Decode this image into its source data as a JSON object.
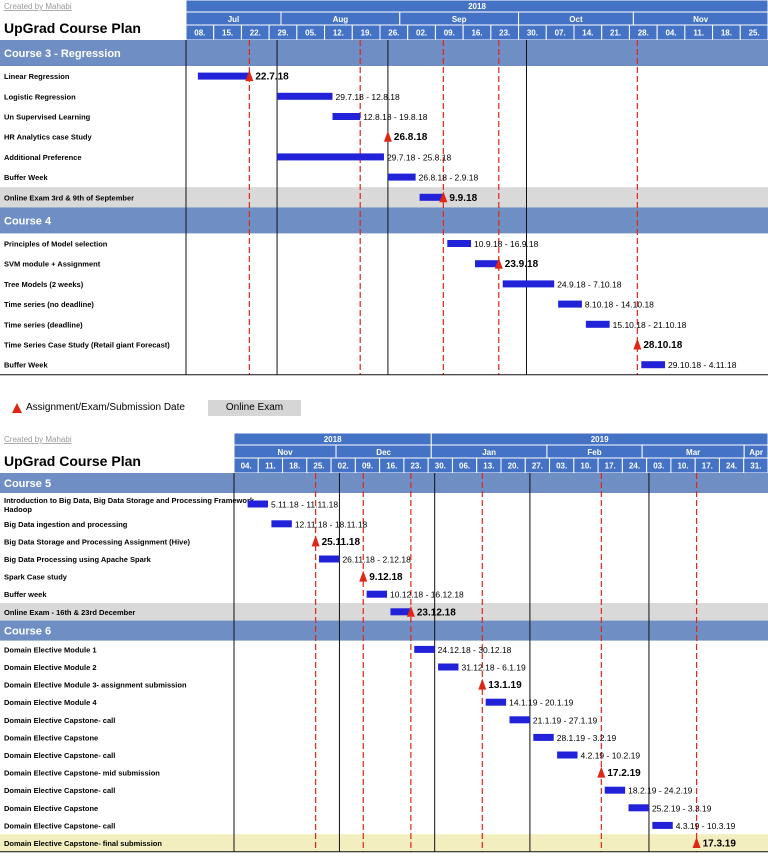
{
  "legend": {
    "marker_label": "Assignment/Exam/Submission Date",
    "exam_label": "Online Exam"
  },
  "colors": {
    "header": "#4472c4",
    "section": "#6f8fc4",
    "bar": "#2222d8",
    "marker": "#e02616",
    "exam_row": "#d9d9d9",
    "final_row": "#f3eec0",
    "grid": "#111111",
    "redline": "#e02616"
  },
  "chart_data": [
    {
      "type": "gantt",
      "credit": "Created by Mahabi",
      "title": "UpGrad Course Plan",
      "year_labels": [
        {
          "label": "2018",
          "from": "2018-07-06",
          "to": "2018-11-30"
        }
      ],
      "months": [
        {
          "label": "Jul",
          "from": "2018-07-06",
          "to": "2018-07-30"
        },
        {
          "label": "Aug",
          "from": "2018-07-30",
          "to": "2018-08-29"
        },
        {
          "label": "Sep",
          "from": "2018-08-29",
          "to": "2018-09-28"
        },
        {
          "label": "Oct",
          "from": "2018-09-28",
          "to": "2018-10-27"
        },
        {
          "label": "Nov",
          "from": "2018-10-27",
          "to": "2018-11-30"
        }
      ],
      "week_ticks": [
        "08.",
        "15.",
        "22.",
        "29.",
        "05.",
        "12.",
        "19.",
        "26.",
        "02.",
        "09.",
        "16.",
        "23.",
        "30.",
        "07.",
        "14.",
        "21.",
        "28.",
        "04.",
        "11.",
        "18.",
        "25."
      ],
      "week_dates": [
        "2018-07-08",
        "2018-07-15",
        "2018-07-22",
        "2018-07-29",
        "2018-08-05",
        "2018-08-12",
        "2018-08-19",
        "2018-08-26",
        "2018-09-02",
        "2018-09-09",
        "2018-09-16",
        "2018-09-23",
        "2018-09-30",
        "2018-10-07",
        "2018-10-14",
        "2018-10-21",
        "2018-10-28",
        "2018-11-04",
        "2018-11-11",
        "2018-11-18",
        "2018-11-25"
      ],
      "range": [
        "2018-07-06",
        "2018-11-30"
      ],
      "solid_lines": [
        "2018-07-29",
        "2018-08-26",
        "2018-09-30"
      ],
      "red_lines": [
        "2018-07-22",
        "2018-08-19",
        "2018-09-09",
        "2018-09-23",
        "2018-10-28"
      ],
      "sections": [
        {
          "name": "Course 3 - Regression",
          "rows": [
            {
              "label": "Linear Regression",
              "start": "2018-07-09",
              "end": "2018-07-22",
              "marker": "2018-07-22",
              "text": "22.7.18",
              "bold": true
            },
            {
              "label": "Logistic Regression",
              "start": "2018-07-29",
              "end": "2018-08-12",
              "text": "29.7.18 - 12.8.18"
            },
            {
              "label": "Un Supervised Learning",
              "start": "2018-08-12",
              "end": "2018-08-19",
              "text": "12.8.18 - 19.8.18"
            },
            {
              "label": "HR Analytics case Study",
              "marker": "2018-08-26",
              "text": "26.8.18",
              "bold": true
            },
            {
              "label": "Additional Preference",
              "start": "2018-07-29",
              "end": "2018-08-25",
              "text": "29.7.18 - 25.8.18"
            },
            {
              "label": "Buffer Week",
              "start": "2018-08-26",
              "end": "2018-09-02",
              "text": "26.8.18 - 2.9.18"
            },
            {
              "label": "Online Exam 3rd & 9th of September",
              "start": "2018-09-03",
              "end": "2018-09-09",
              "marker": "2018-09-09",
              "text": "9.9.18",
              "bold": true,
              "exam": true
            }
          ]
        },
        {
          "name": "Course 4",
          "rows": [
            {
              "label": "Principles of Model selection",
              "start": "2018-09-10",
              "end": "2018-09-16",
              "text": "10.9.18 - 16.9.18"
            },
            {
              "label": "SVM module + Assignment",
              "start": "2018-09-17",
              "end": "2018-09-23",
              "marker": "2018-09-23",
              "text": "23.9.18",
              "bold": true
            },
            {
              "label": "Tree Models (2 weeks)",
              "start": "2018-09-24",
              "end": "2018-10-07",
              "text": "24.9.18 - 7.10.18"
            },
            {
              "label": "Time series (no deadline)",
              "start": "2018-10-08",
              "end": "2018-10-14",
              "text": "8.10.18 - 14.10.18"
            },
            {
              "label": "Time series (deadline)",
              "start": "2018-10-15",
              "end": "2018-10-21",
              "text": "15.10.18 - 21.10.18"
            },
            {
              "label": "Time Series Case Study (Retail giant Forecast)",
              "marker": "2018-10-28",
              "text": "28.10.18",
              "bold": true
            },
            {
              "label": "Buffer Week",
              "start": "2018-10-29",
              "end": "2018-11-04",
              "text": "29.10.18 - 4.11.18"
            }
          ]
        }
      ]
    },
    {
      "type": "gantt",
      "credit": "Created by Mahabi",
      "title": "UpGrad Course Plan",
      "year_labels": [
        {
          "label": "2018",
          "from": "2018-11-01",
          "to": "2018-12-29"
        },
        {
          "label": "2019",
          "from": "2018-12-29",
          "to": "2019-04-07"
        }
      ],
      "months": [
        {
          "label": "Nov",
          "from": "2018-11-01",
          "to": "2018-12-01"
        },
        {
          "label": "Dec",
          "from": "2018-12-01",
          "to": "2018-12-29"
        },
        {
          "label": "Jan",
          "from": "2018-12-29",
          "to": "2019-02-01"
        },
        {
          "label": "Feb",
          "from": "2019-02-01",
          "to": "2019-03-01"
        },
        {
          "label": "Mar",
          "from": "2019-03-01",
          "to": "2019-03-31"
        },
        {
          "label": "Apr",
          "from": "2019-03-31",
          "to": "2019-04-07"
        }
      ],
      "week_ticks": [
        "04.",
        "11.",
        "18.",
        "25.",
        "02.",
        "09.",
        "16.",
        "23.",
        "30.",
        "06.",
        "13.",
        "20.",
        "27.",
        "03.",
        "10.",
        "17.",
        "24.",
        "03.",
        "10.",
        "17.",
        "24.",
        "31."
      ],
      "week_dates": [
        "2018-11-04",
        "2018-11-11",
        "2018-11-18",
        "2018-11-25",
        "2018-12-02",
        "2018-12-09",
        "2018-12-16",
        "2018-12-23",
        "2018-12-30",
        "2019-01-06",
        "2019-01-13",
        "2019-01-20",
        "2019-01-27",
        "2019-02-03",
        "2019-02-10",
        "2019-02-17",
        "2019-02-24",
        "2019-03-03",
        "2019-03-10",
        "2019-03-17",
        "2019-03-24",
        "2019-03-31"
      ],
      "range": [
        "2018-11-01",
        "2019-04-07"
      ],
      "solid_lines": [
        "2018-12-02",
        "2018-12-30",
        "2019-01-27",
        "2019-03-03"
      ],
      "red_lines": [
        "2018-11-25",
        "2018-12-09",
        "2018-12-23",
        "2019-01-13",
        "2019-02-17",
        "2019-03-17"
      ],
      "sections": [
        {
          "name": "Course 5",
          "rows": [
            {
              "label": "Introduction to Big Data, Big Data Storage and Processing Framework- Hadoop",
              "start": "2018-11-05",
              "end": "2018-11-11",
              "text": "5.11.18 - 11.11.18",
              "tall": true
            },
            {
              "label": "Big Data ingestion and processing",
              "start": "2018-11-12",
              "end": "2018-11-18",
              "text": "12.11.18 - 18.11.18"
            },
            {
              "label": "Big Data Storage and Processing Assignment (Hive)",
              "marker": "2018-11-25",
              "text": "25.11.18",
              "bold": true
            },
            {
              "label": "Big Data Processing using Apache Spark",
              "start": "2018-11-26",
              "end": "2018-12-02",
              "text": "26.11.18 - 2.12.18"
            },
            {
              "label": "Spark Case study",
              "marker": "2018-12-09",
              "text": "9.12.18",
              "bold": true
            },
            {
              "label": "Buffer week",
              "start": "2018-12-10",
              "end": "2018-12-16",
              "text": "10.12.18 - 16.12.18"
            },
            {
              "label": "Online Exam - 16th & 23rd December",
              "start": "2018-12-17",
              "end": "2018-12-23",
              "marker": "2018-12-23",
              "text": "23.12.18",
              "bold": true,
              "exam": true
            }
          ]
        },
        {
          "name": "Course 6",
          "rows": [
            {
              "label": "Domain Elective Module 1",
              "start": "2018-12-24",
              "end": "2018-12-30",
              "text": "24.12.18 - 30.12.18"
            },
            {
              "label": "Domain Elective Module 2",
              "start": "2018-12-31",
              "end": "2019-01-06",
              "text": "31.12.18 - 6.1.19"
            },
            {
              "label": "Domain Elective Module 3- assignment submission",
              "marker": "2019-01-13",
              "text": "13.1.19",
              "bold": true
            },
            {
              "label": "Domain Elective Module 4",
              "start": "2019-01-14",
              "end": "2019-01-20",
              "text": "14.1.19 - 20.1.19"
            },
            {
              "label": "Domain Elective Capstone- call",
              "start": "2019-01-21",
              "end": "2019-01-27",
              "text": "21.1.19 - 27.1.19"
            },
            {
              "label": "Domain Elective Capstone",
              "start": "2019-01-28",
              "end": "2019-02-03",
              "text": "28.1.19 - 3.2.19"
            },
            {
              "label": "Domain Elective Capstone- call",
              "start": "2019-02-04",
              "end": "2019-02-10",
              "text": "4.2.19 - 10.2.19"
            },
            {
              "label": "Domain Elective Capstone- mid submission",
              "marker": "2019-02-17",
              "text": "17.2.19",
              "bold": true
            },
            {
              "label": "Domain Elective Capstone- call",
              "start": "2019-02-18",
              "end": "2019-02-24",
              "text": "18.2.19 - 24.2.19"
            },
            {
              "label": "Domain Elective Capstone",
              "start": "2019-02-25",
              "end": "2019-03-03",
              "text": "25.2.19 - 3.3.19"
            },
            {
              "label": "Domain Elective Capstone- call",
              "start": "2019-03-04",
              "end": "2019-03-10",
              "text": "4.3.19 - 10.3.19"
            },
            {
              "label": "Domain Elective Capstone- final submission",
              "marker": "2019-03-17",
              "text": "17.3.19",
              "bold": true,
              "final": true
            }
          ]
        }
      ]
    }
  ]
}
